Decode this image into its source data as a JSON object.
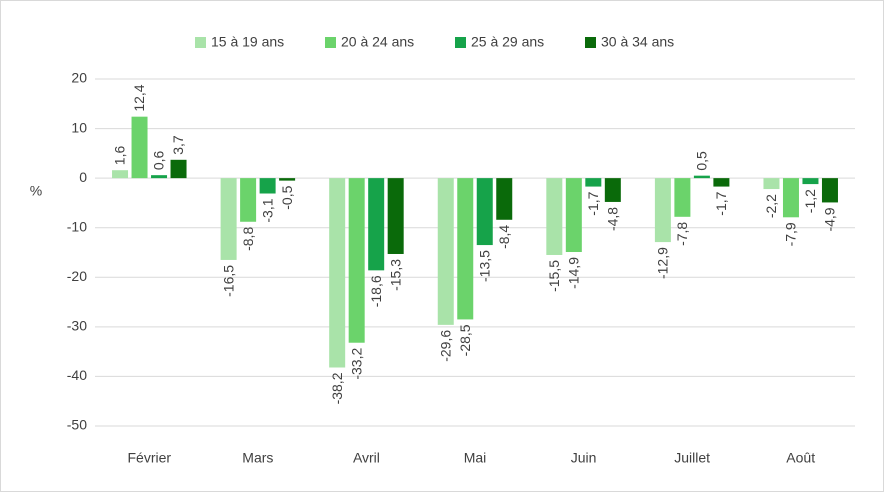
{
  "chart_data": {
    "type": "bar",
    "categories": [
      "Février",
      "Mars",
      "Avril",
      "Mai",
      "Juin",
      "Juillet",
      "Août"
    ],
    "y_label": "%",
    "series": [
      {
        "name": "15 à 19 ans",
        "color": "#a9e3a9",
        "values": [
          1.6,
          -16.5,
          -38.2,
          -29.6,
          -15.5,
          -12.9,
          -2.2
        ],
        "value_labels": [
          "1,6",
          "-16,5",
          "-38,2",
          "-29,6",
          "-15,5",
          "-12,9",
          "-2,2"
        ]
      },
      {
        "name": "20 à 24 ans",
        "color": "#6bd36b",
        "values": [
          12.4,
          -8.8,
          -33.2,
          -28.5,
          -14.9,
          -7.8,
          -7.9
        ],
        "value_labels": [
          "12,4",
          "-8,8",
          "-33,2",
          "-28,5",
          "-14,9",
          "-7,8",
          "-7,9"
        ]
      },
      {
        "name": "25 à 29 ans",
        "color": "#16a34a",
        "values": [
          0.6,
          -3.1,
          -18.6,
          -13.5,
          -1.7,
          0.5,
          -1.2
        ],
        "value_labels": [
          "0,6",
          "-3,1",
          "-18,6",
          "-13,5",
          "-1,7",
          "0,5",
          "-1,2"
        ]
      },
      {
        "name": "30 à 34 ans",
        "color": "#0a6a0a",
        "values": [
          3.7,
          -0.5,
          -15.3,
          -8.4,
          -4.8,
          -1.7,
          -4.9
        ],
        "value_labels": [
          "3,7",
          "-0,5",
          "-15,3",
          "-8,4",
          "-4,8",
          "-1,7",
          "-4,9"
        ]
      }
    ],
    "ylim": [
      -50,
      20
    ],
    "yticks": [
      -50,
      -40,
      -30,
      -20,
      -10,
      0,
      10,
      20
    ],
    "grid": true,
    "legend": "top"
  }
}
